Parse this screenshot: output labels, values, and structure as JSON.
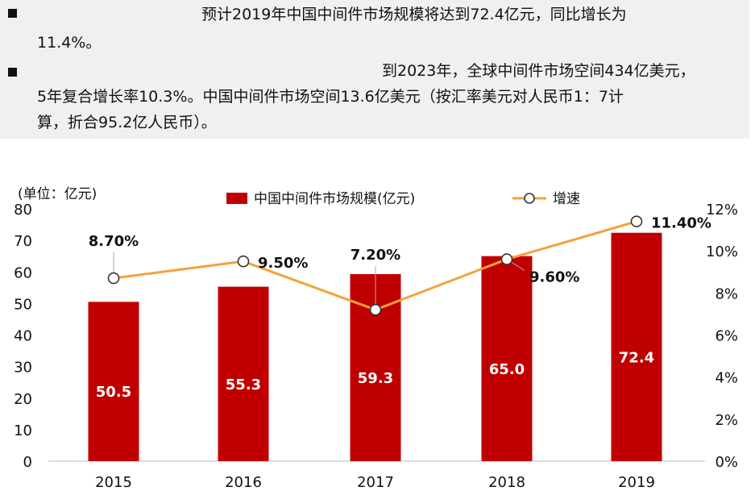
{
  "notes": {
    "bullet1": {
      "line1": "预计2019年中国中间件市场规模将达到72.4亿元，同比增长为",
      "line2": "11.4%。"
    },
    "bullet2": {
      "line1": "到2023年，全球中间件市场空间434亿美元，",
      "line2": "5年复合增长率10.3%。中国中间件市场空间13.6亿美元（按汇率美元对人民币1：7计",
      "line3": "算，折合95.2亿人民币）。"
    }
  },
  "chart_data": {
    "type": "bar",
    "unit_label": "(单位：亿元)",
    "categories": [
      "2015",
      "2016",
      "2017",
      "2018",
      "2019"
    ],
    "series": [
      {
        "name": "中国中间件市场规模(亿元)",
        "type": "bar",
        "axis": "left",
        "values": [
          50.5,
          55.3,
          59.3,
          65.0,
          72.4
        ],
        "labels": [
          "50.5",
          "55.3",
          "59.3",
          "65.0",
          "72.4"
        ],
        "color": "#c00000"
      },
      {
        "name": "增速",
        "type": "line",
        "axis": "right",
        "values": [
          8.7,
          9.5,
          7.2,
          9.6,
          11.4
        ],
        "labels": [
          "8.70%",
          "9.50%",
          "7.20%",
          "9.60%",
          "11.40%"
        ],
        "color": "#f4a23a"
      }
    ],
    "left_axis": {
      "min": 0,
      "max": 80,
      "ticks": [
        "0",
        "10",
        "20",
        "30",
        "40",
        "50",
        "60",
        "70",
        "80"
      ]
    },
    "right_axis": {
      "min": 0,
      "max": 12,
      "ticks": [
        "0%",
        "2%",
        "4%",
        "6%",
        "8%",
        "10%",
        "12%"
      ]
    },
    "legend_position": "top-center",
    "grid": false
  }
}
